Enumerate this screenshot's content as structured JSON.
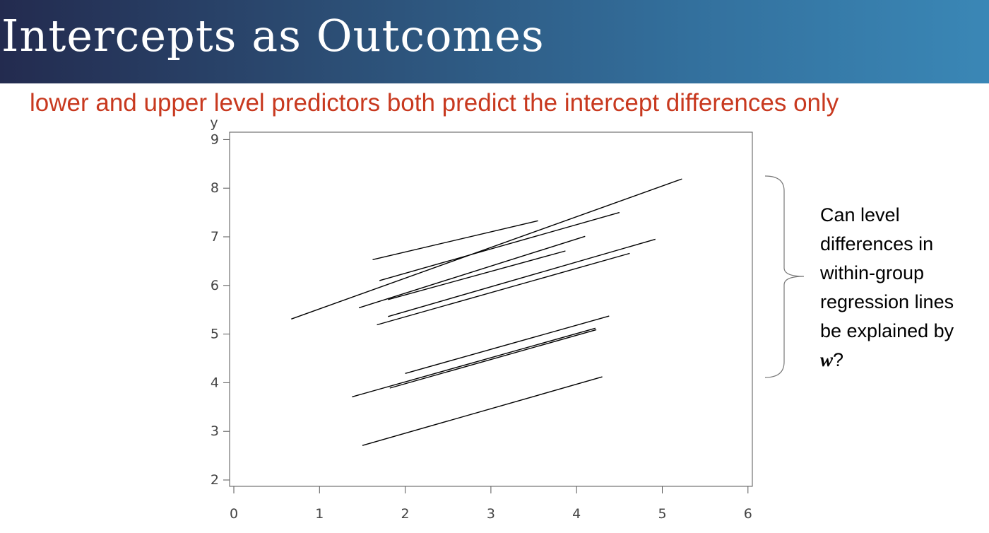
{
  "slide": {
    "title": "Intercepts as Outcomes",
    "subtitle": "lower and upper level predictors both predict the intercept differences only"
  },
  "question": {
    "lines": [
      "Can level",
      "differences in",
      "within-group",
      "regression lines",
      "be explained by"
    ],
    "var": "w",
    "end": "?"
  },
  "colors": {
    "accent_text": "#c8391f",
    "title_gradient_start": "#232b4f",
    "title_gradient_end": "#3a87b6"
  },
  "chart_data": {
    "type": "line",
    "title": "",
    "xlabel": "",
    "ylabel": "y",
    "xlim": [
      0,
      6
    ],
    "ylim": [
      2,
      9
    ],
    "xticks": [
      0,
      1,
      2,
      3,
      4,
      5,
      6
    ],
    "yticks": [
      2,
      3,
      4,
      5,
      6,
      7,
      8,
      9
    ],
    "grid": false,
    "series": [
      {
        "x": [
          0.67,
          5.23
        ],
        "y": [
          5.31,
          8.19
        ]
      },
      {
        "x": [
          1.62,
          3.55
        ],
        "y": [
          6.53,
          7.33
        ]
      },
      {
        "x": [
          1.7,
          4.5
        ],
        "y": [
          6.1,
          7.5
        ]
      },
      {
        "x": [
          1.46,
          4.1
        ],
        "y": [
          5.54,
          7.01
        ]
      },
      {
        "x": [
          1.8,
          3.87
        ],
        "y": [
          5.71,
          6.71
        ]
      },
      {
        "x": [
          1.8,
          4.92
        ],
        "y": [
          5.36,
          6.95
        ]
      },
      {
        "x": [
          1.67,
          4.62
        ],
        "y": [
          5.19,
          6.66
        ]
      },
      {
        "x": [
          2.0,
          4.38
        ],
        "y": [
          4.19,
          5.37
        ]
      },
      {
        "x": [
          1.38,
          4.22
        ],
        "y": [
          3.71,
          5.12
        ]
      },
      {
        "x": [
          1.82,
          4.23
        ],
        "y": [
          3.89,
          5.09
        ]
      },
      {
        "x": [
          1.5,
          4.3
        ],
        "y": [
          2.71,
          4.12
        ]
      }
    ]
  }
}
